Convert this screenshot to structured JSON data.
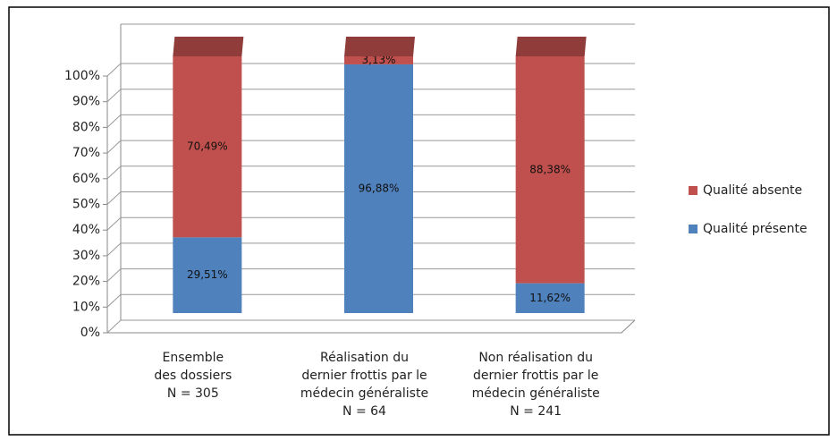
{
  "chart_data": {
    "type": "bar3d_stacked",
    "categories": [
      [
        "Ensemble",
        "des dossiers",
        "N = 305"
      ],
      [
        "Réalisation du",
        "dernier frottis par le",
        "médecin généraliste",
        "N = 64"
      ],
      [
        "Non réalisation du",
        "dernier frottis par le",
        "médecin généraliste",
        "N = 241"
      ]
    ],
    "series": [
      {
        "name": "Qualité présente",
        "color": "#4f81bd",
        "values": [
          29.51,
          96.88,
          11.62
        ],
        "value_labels": [
          "29,51%",
          "96,88%",
          "11,62%"
        ]
      },
      {
        "name": "Qualité absente",
        "color": "#c0504d",
        "values": [
          70.49,
          3.13,
          88.38
        ],
        "value_labels": [
          "70,49%",
          "3,13%",
          "88,38%"
        ]
      }
    ],
    "ylim": [
      0,
      100
    ],
    "yticks": [
      {
        "value": 0,
        "label": "0%"
      },
      {
        "value": 10,
        "label": "10%"
      },
      {
        "value": 20,
        "label": "20%"
      },
      {
        "value": 30,
        "label": "30%"
      },
      {
        "value": 40,
        "label": "40%"
      },
      {
        "value": 50,
        "label": "50%"
      },
      {
        "value": 60,
        "label": "60%"
      },
      {
        "value": 70,
        "label": "70%"
      },
      {
        "value": 80,
        "label": "80%"
      },
      {
        "value": 90,
        "label": "90%"
      },
      {
        "value": 100,
        "label": "100%"
      }
    ],
    "grid": true,
    "legend": "right"
  }
}
